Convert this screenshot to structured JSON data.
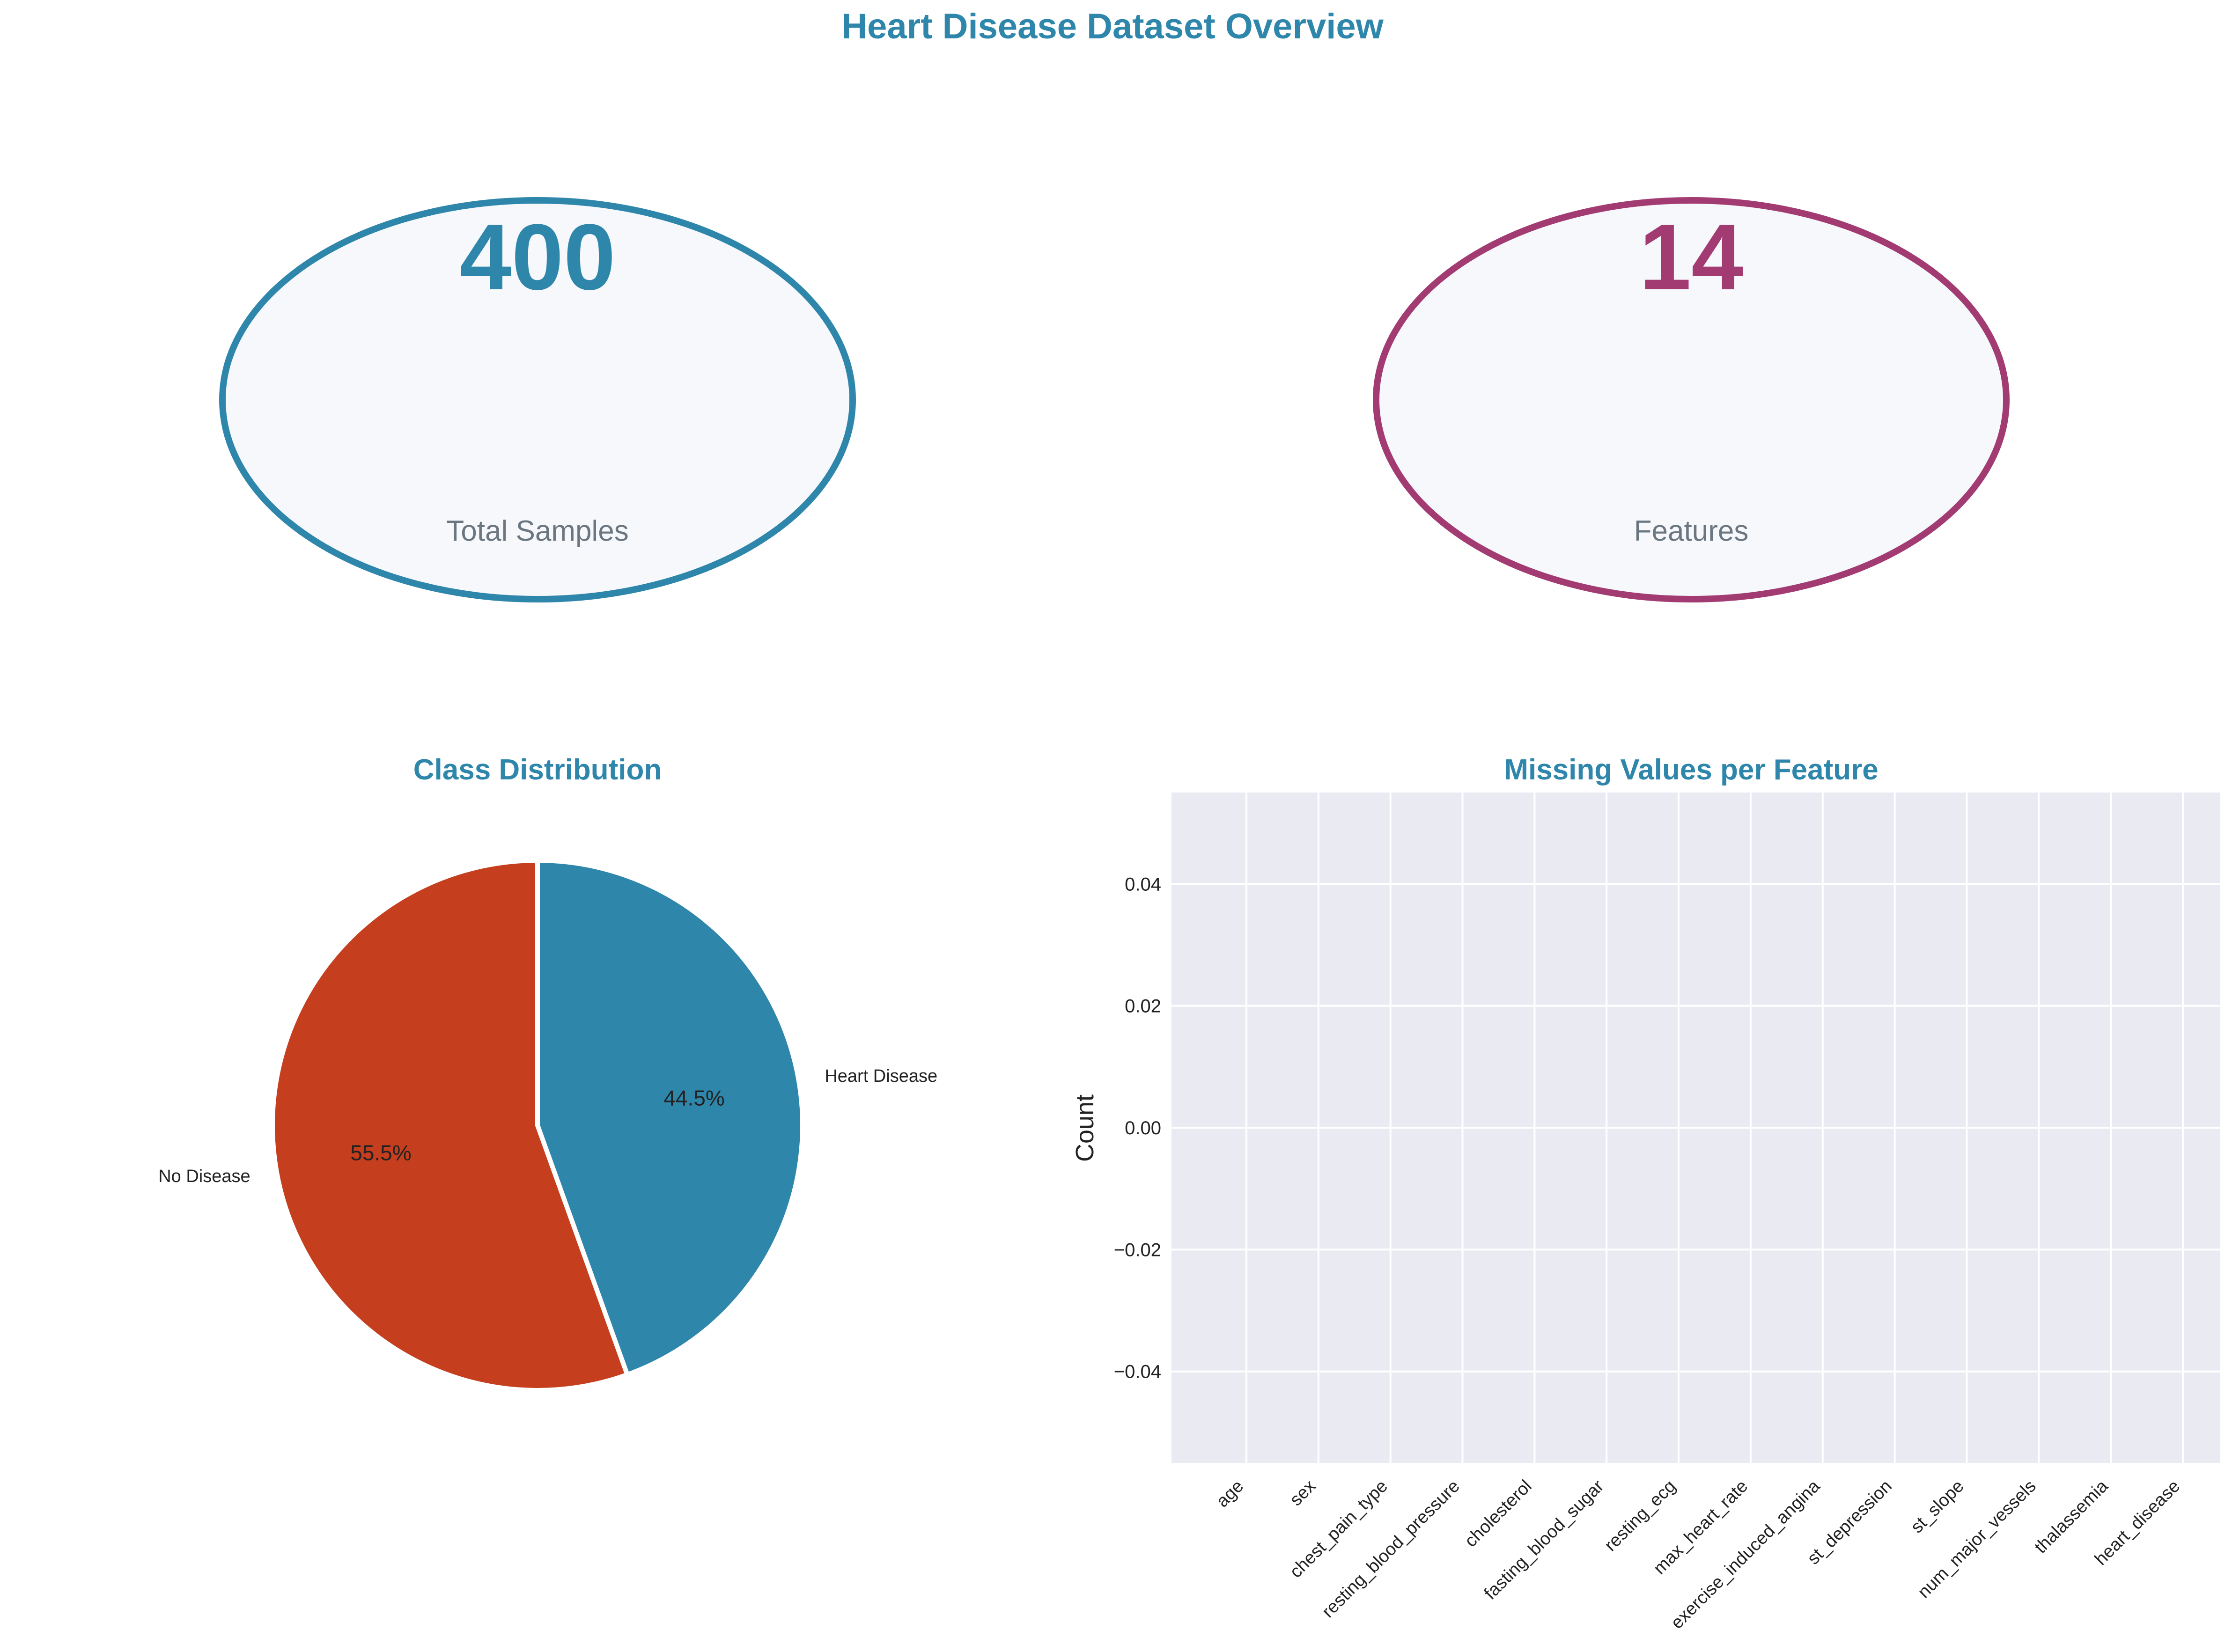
{
  "title": "Heart Disease Dataset Overview",
  "colors": {
    "title": "#2E86AB",
    "samples": "#2E86AB",
    "features": "#A23B72",
    "no_disease": "#C53E1D",
    "heart_disease": "#2E86AB",
    "card_fill": "#F7F8FC",
    "card_label": "#6B7780",
    "axes_bg": "#EAEAF2",
    "grid": "#FFFFFF"
  },
  "stat_cards": [
    {
      "value": "400",
      "label": "Total Samples"
    },
    {
      "value": "14",
      "label": "Features"
    }
  ],
  "chart_data": [
    {
      "type": "pie",
      "title": "Class Distribution",
      "labels": [
        "Heart Disease",
        "No Disease"
      ],
      "values": [
        44.5,
        55.5
      ],
      "autopct": [
        "44.5%",
        "55.5%"
      ],
      "start_angle_deg": 90
    },
    {
      "type": "bar",
      "title": "Missing Values per Feature",
      "xlabel": "",
      "ylabel": "Count",
      "categories": [
        "age",
        "sex",
        "chest_pain_type",
        "resting_blood_pressure",
        "cholesterol",
        "fasting_blood_sugar",
        "resting_ecg",
        "max_heart_rate",
        "exercise_induced_angina",
        "st_depression",
        "st_slope",
        "num_major_vessels",
        "thalassemia",
        "heart_disease"
      ],
      "values": [
        0,
        0,
        0,
        0,
        0,
        0,
        0,
        0,
        0,
        0,
        0,
        0,
        0,
        0
      ],
      "ylim": [
        -0.055,
        0.055
      ],
      "yticks": [
        0.04,
        0.02,
        0.0,
        -0.02,
        -0.04
      ],
      "ytick_labels": [
        "0.04",
        "0.02",
        "0.00",
        "−0.02",
        "−0.04"
      ],
      "grid": true
    }
  ]
}
